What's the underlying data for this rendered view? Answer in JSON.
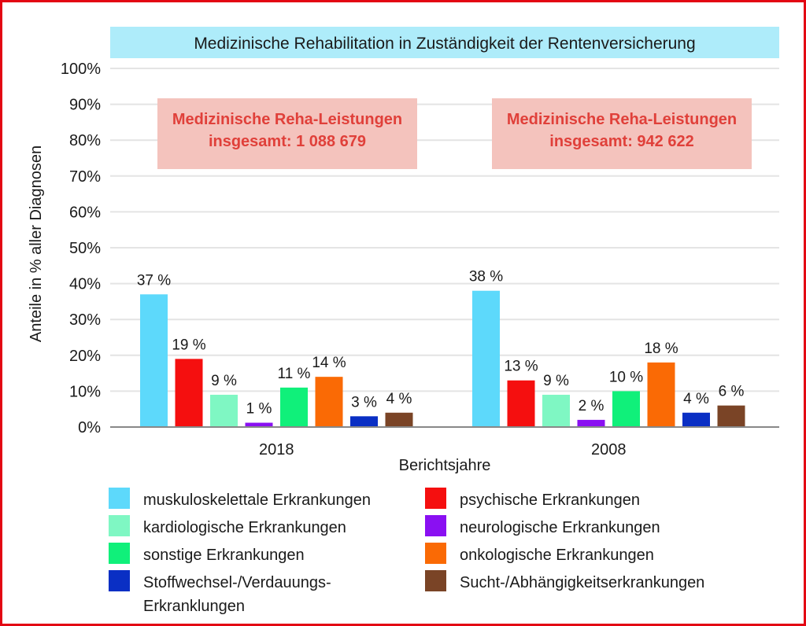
{
  "colors": {
    "frame": "#e30613",
    "title_bg": "#aeecfa",
    "box_bg": "#f4c3bd",
    "box_text": "#e0403a",
    "grid": "#e4e4e4",
    "axis": "#888888",
    "text": "#1a1a1a"
  },
  "chart_data": {
    "type": "bar",
    "title": "Medizinische Rehabilitation in Zuständigkeit der Rentenversicherung",
    "xlabel": "Berichtsjahre",
    "ylabel": "Anteile in % aller Diagnosen",
    "ylim": [
      0,
      100
    ],
    "yticks": [
      0,
      10,
      20,
      30,
      40,
      50,
      60,
      70,
      80,
      90,
      100
    ],
    "ytick_labels": [
      "0%",
      "10%",
      "20%",
      "30%",
      "40%",
      "50%",
      "60%",
      "70%",
      "80%",
      "90%",
      "100%"
    ],
    "grid": true,
    "categories": [
      "2018",
      "2008"
    ],
    "series": [
      {
        "name": "muskuloskelettale Erkrankungen",
        "color": "#5dd9fb",
        "values": [
          37,
          38
        ],
        "labels": [
          "37 %",
          "38 %"
        ]
      },
      {
        "name": "psychische Erkrankungen",
        "color": "#f50f0f",
        "values": [
          19,
          13
        ],
        "labels": [
          "19 %",
          "13 %"
        ]
      },
      {
        "name": "kardiologische Erkrankungen",
        "color": "#7ff7c3",
        "values": [
          9,
          9
        ],
        "labels": [
          "9 %",
          "9 %"
        ]
      },
      {
        "name": "neurologische Erkrankungen",
        "color": "#8a10f2",
        "values": [
          1.2,
          2
        ],
        "labels": [
          "1 %",
          "2 %"
        ]
      },
      {
        "name": "sonstige Erkrankungen",
        "color": "#10f07a",
        "values": [
          11,
          10
        ],
        "labels": [
          "11 %",
          "10 %"
        ]
      },
      {
        "name": "onkologische Erkrankungen",
        "color": "#fa6a05",
        "values": [
          14,
          18
        ],
        "labels": [
          "14 %",
          "18 %"
        ]
      },
      {
        "name": "Stoffwechsel-/Verdauungs-Erkranklungen",
        "color": "#0a2fc4",
        "values": [
          3,
          4
        ],
        "labels": [
          "3 %",
          "4 %"
        ]
      },
      {
        "name": "Sucht-/Abhängigkeitserkrankungen",
        "color": "#7a4426",
        "values": [
          4,
          6
        ],
        "labels": [
          "4 %",
          "6 %"
        ]
      }
    ],
    "annotations": [
      {
        "category": "2018",
        "line1": "Medizinische Reha-Leistungen",
        "line2": "insgesamt: 1 088 679"
      },
      {
        "category": "2008",
        "line1": "Medizinische Reha-Leistungen",
        "line2": "insgesamt: 942 622"
      }
    ],
    "legend": {
      "placement": "bottom",
      "items": [
        {
          "series": 0,
          "lines": [
            "muskuloskelettale Erkrankungen"
          ]
        },
        {
          "series": 1,
          "lines": [
            "psychische Erkrankungen"
          ]
        },
        {
          "series": 2,
          "lines": [
            "kardiologische Erkrankungen"
          ]
        },
        {
          "series": 3,
          "lines": [
            "neurologische Erkrankungen"
          ]
        },
        {
          "series": 4,
          "lines": [
            "sonstige Erkrankungen"
          ]
        },
        {
          "series": 5,
          "lines": [
            "onkologische Erkrankungen"
          ]
        },
        {
          "series": 6,
          "lines": [
            "Stoffwechsel-/Verdauungs-",
            "Erkranklungen"
          ]
        },
        {
          "series": 7,
          "lines": [
            "Sucht-/Abhängigkeitserkrankungen"
          ]
        }
      ]
    }
  }
}
